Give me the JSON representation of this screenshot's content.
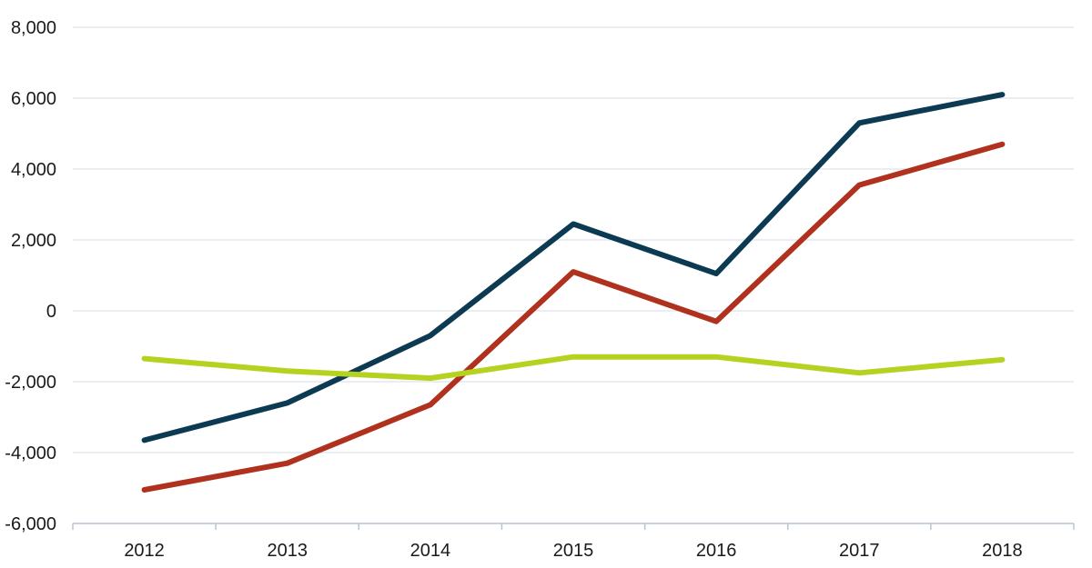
{
  "chart_data": {
    "type": "line",
    "title": "",
    "xlabel": "",
    "ylabel": "",
    "categories": [
      "2012",
      "2013",
      "2014",
      "2015",
      "2016",
      "2017",
      "2018"
    ],
    "ylim": [
      -6000,
      8000
    ],
    "yticks": [
      8000,
      6000,
      4000,
      2000,
      0,
      -2000,
      -4000,
      -6000
    ],
    "ytick_labels": [
      "8,000",
      "6,000",
      "4,000",
      "2,000",
      "0",
      "-2,000",
      "-4,000",
      "-6,000"
    ],
    "grid": true,
    "legend": "none",
    "series": [
      {
        "color": "#0b3a52",
        "values": [
          -3650,
          -2600,
          -700,
          2450,
          1050,
          5300,
          6100
        ]
      },
      {
        "color": "#b0311e",
        "values": [
          -5050,
          -4300,
          -2650,
          1100,
          -300,
          3550,
          4700
        ]
      },
      {
        "color": "#b5d220",
        "values": [
          -1350,
          -1700,
          -1900,
          -1300,
          -1300,
          -1750,
          -1380
        ]
      }
    ]
  }
}
